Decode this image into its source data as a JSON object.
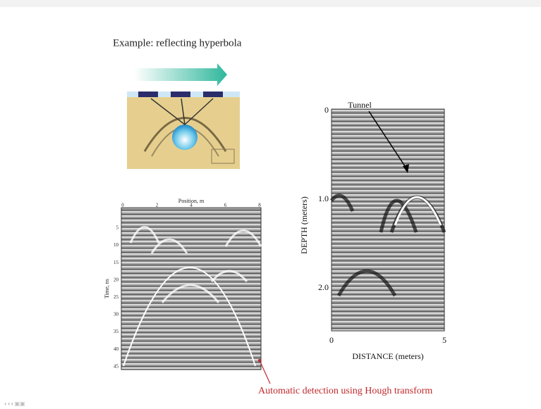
{
  "title": "Example: reflecting hyperbola",
  "left_figure": {
    "x_label": "Position, m",
    "x_ticks": [
      "0",
      "2",
      "4",
      "6",
      "8"
    ],
    "y_label": "Time, ns",
    "y_ticks": [
      "5",
      "10",
      "15",
      "20",
      "25",
      "30",
      "35",
      "40",
      "45"
    ]
  },
  "right_figure": {
    "annotation": "Tunnel",
    "y_label": "DEPTH (meters)",
    "y_ticks": [
      "0",
      "1.0",
      "2.0"
    ],
    "x_label": "DISTANCE (meters)",
    "x_ticks": [
      "0",
      "5"
    ]
  },
  "caption": "Automatic detection using Hough transform"
}
